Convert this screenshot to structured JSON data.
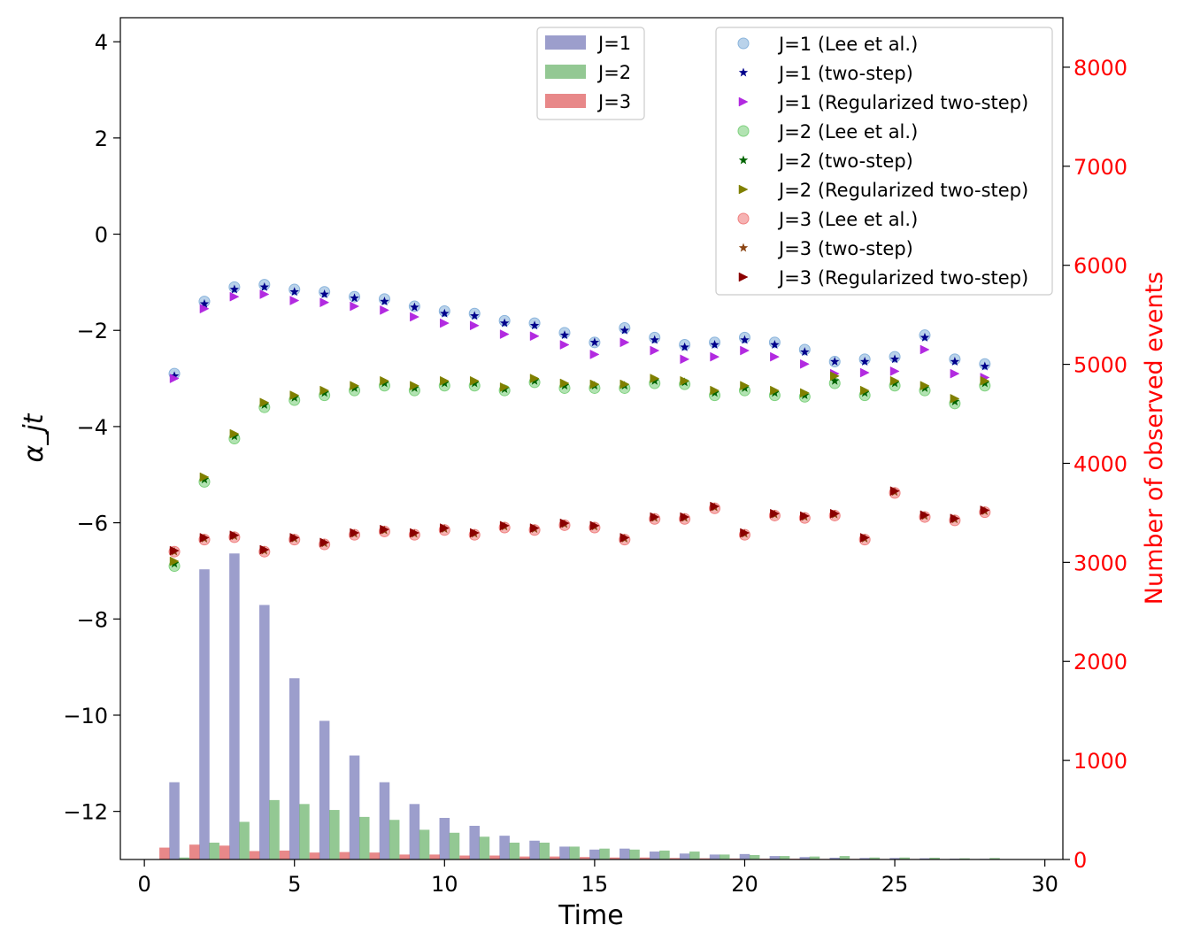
{
  "chart_data": {
    "type": "bar+scatter",
    "xlabel": "Time",
    "ylabel_left": "α_jt",
    "ylabel_right": "Number of observed events",
    "xlim": [
      -0.8,
      30.6
    ],
    "ylim_left": [
      -13.0,
      4.5
    ],
    "ylim_right": [
      0,
      8500
    ],
    "x_ticks": [
      0,
      5,
      10,
      15,
      20,
      25,
      30
    ],
    "x_tick_labels": [
      "0",
      "5",
      "10",
      "15",
      "20",
      "25",
      "30"
    ],
    "y_left_ticks": [
      4,
      2,
      0,
      -2,
      -4,
      -6,
      -8,
      -10,
      -12
    ],
    "y_left_tick_labels": [
      "4",
      "2",
      "0",
      "−2",
      "−4",
      "−6",
      "−8",
      "−10",
      "−12"
    ],
    "y_right_ticks": [
      0,
      1000,
      2000,
      3000,
      4000,
      5000,
      6000,
      7000,
      8000
    ],
    "y_right_tick_labels": [
      "0",
      "1000",
      "2000",
      "3000",
      "4000",
      "5000",
      "6000",
      "7000",
      "8000"
    ],
    "colors": {
      "axis_right": "#ff0000",
      "bar_j1": "#4a4fa3",
      "bar_j2": "#3a9a3a",
      "bar_j3": "#d62728"
    },
    "bar_series": [
      {
        "name": "J=1",
        "color": "#4a4fa3",
        "offset": 0.0,
        "values": [
          780,
          2930,
          3090,
          2570,
          1830,
          1400,
          1050,
          780,
          560,
          420,
          340,
          240,
          190,
          130,
          100,
          110,
          80,
          60,
          50,
          55,
          35,
          25,
          18,
          15,
          15,
          12,
          8,
          6
        ]
      },
      {
        "name": "J=2",
        "color": "#3a9a3a",
        "offset": 0.33,
        "values": [
          20,
          170,
          380,
          600,
          560,
          500,
          430,
          400,
          300,
          270,
          230,
          170,
          170,
          130,
          110,
          100,
          90,
          80,
          50,
          45,
          35,
          30,
          35,
          20,
          20,
          18,
          12,
          15
        ]
      },
      {
        "name": "J=3",
        "color": "#d62728",
        "offset": -0.33,
        "values": [
          120,
          150,
          140,
          85,
          90,
          70,
          75,
          70,
          50,
          50,
          40,
          40,
          30,
          30,
          25,
          20,
          20,
          15,
          12,
          10,
          8,
          8,
          6,
          6,
          5,
          5,
          4,
          3
        ]
      }
    ],
    "scatter_series": [
      {
        "name": "J=1 (Lee et al.)",
        "marker": "circle",
        "color": "#8ab4dc",
        "x": [
          1,
          2,
          3,
          4,
          5,
          6,
          7,
          8,
          9,
          10,
          11,
          12,
          13,
          14,
          15,
          16,
          17,
          18,
          19,
          20,
          21,
          22,
          23,
          24,
          25,
          26,
          27,
          28
        ],
        "y": [
          -2.9,
          -1.4,
          -1.1,
          -1.05,
          -1.15,
          -1.2,
          -1.3,
          -1.35,
          -1.5,
          -1.6,
          -1.65,
          -1.8,
          -1.85,
          -2.05,
          -2.25,
          -1.95,
          -2.15,
          -2.3,
          -2.25,
          -2.15,
          -2.25,
          -2.4,
          -2.65,
          -2.6,
          -2.55,
          -2.1,
          -2.6,
          -2.7
        ]
      },
      {
        "name": "J=1 (two-step)",
        "marker": "star",
        "color": "#00008b",
        "x": [
          1,
          2,
          3,
          4,
          5,
          6,
          7,
          8,
          9,
          10,
          11,
          12,
          13,
          14,
          15,
          16,
          17,
          18,
          19,
          20,
          21,
          22,
          23,
          24,
          25,
          26,
          27,
          28
        ],
        "y": [
          -2.95,
          -1.45,
          -1.15,
          -1.1,
          -1.2,
          -1.25,
          -1.33,
          -1.4,
          -1.52,
          -1.65,
          -1.7,
          -1.85,
          -1.9,
          -2.1,
          -2.25,
          -2.0,
          -2.2,
          -2.35,
          -2.3,
          -2.2,
          -2.3,
          -2.45,
          -2.65,
          -2.65,
          -2.6,
          -2.15,
          -2.65,
          -2.75
        ]
      },
      {
        "name": "J=1 (Regularized two-step)",
        "marker": "triangle-right",
        "color": "#b22ae0",
        "x": [
          1,
          2,
          3,
          4,
          5,
          6,
          7,
          8,
          9,
          10,
          11,
          12,
          13,
          14,
          15,
          16,
          17,
          18,
          19,
          20,
          21,
          22,
          23,
          24,
          25,
          26,
          27,
          28
        ],
        "y": [
          -3.0,
          -1.55,
          -1.3,
          -1.25,
          -1.38,
          -1.42,
          -1.5,
          -1.58,
          -1.72,
          -1.85,
          -1.9,
          -2.08,
          -2.12,
          -2.3,
          -2.5,
          -2.25,
          -2.42,
          -2.6,
          -2.55,
          -2.42,
          -2.55,
          -2.7,
          -2.9,
          -2.88,
          -2.85,
          -2.4,
          -2.9,
          -2.98
        ]
      },
      {
        "name": "J=2 (Lee et al.)",
        "marker": "circle",
        "color": "#7fd17f",
        "x": [
          1,
          2,
          3,
          4,
          5,
          6,
          7,
          8,
          9,
          10,
          11,
          12,
          13,
          14,
          15,
          16,
          17,
          18,
          19,
          20,
          21,
          22,
          23,
          24,
          25,
          26,
          27,
          28
        ],
        "y": [
          -6.9,
          -5.15,
          -4.25,
          -3.6,
          -3.45,
          -3.35,
          -3.25,
          -3.15,
          -3.25,
          -3.15,
          -3.15,
          -3.25,
          -3.08,
          -3.2,
          -3.2,
          -3.2,
          -3.1,
          -3.12,
          -3.35,
          -3.25,
          -3.35,
          -3.38,
          -3.1,
          -3.35,
          -3.15,
          -3.25,
          -3.52,
          -3.15
        ]
      },
      {
        "name": "J=2 (two-step)",
        "marker": "star",
        "color": "#006400",
        "x": [
          1,
          2,
          3,
          4,
          5,
          6,
          7,
          8,
          9,
          10,
          11,
          12,
          13,
          14,
          15,
          16,
          17,
          18,
          19,
          20,
          21,
          22,
          23,
          24,
          25,
          26,
          27,
          28
        ],
        "y": [
          -6.85,
          -5.1,
          -4.2,
          -3.55,
          -3.4,
          -3.3,
          -3.2,
          -3.1,
          -3.2,
          -3.1,
          -3.1,
          -3.22,
          -3.05,
          -3.15,
          -3.15,
          -3.15,
          -3.05,
          -3.08,
          -3.3,
          -3.2,
          -3.3,
          -3.35,
          -3.05,
          -3.3,
          -3.1,
          -3.2,
          -3.48,
          -3.1
        ]
      },
      {
        "name": "J=2 (Regularized two-step)",
        "marker": "triangle-right",
        "color": "#808000",
        "x": [
          1,
          2,
          3,
          4,
          5,
          6,
          7,
          8,
          9,
          10,
          11,
          12,
          13,
          14,
          15,
          16,
          17,
          18,
          19,
          20,
          21,
          22,
          23,
          24,
          25,
          26,
          27,
          28
        ],
        "y": [
          -6.8,
          -5.05,
          -4.15,
          -3.5,
          -3.35,
          -3.25,
          -3.15,
          -3.05,
          -3.15,
          -3.05,
          -3.05,
          -3.18,
          -3.0,
          -3.1,
          -3.12,
          -3.12,
          -3.0,
          -3.05,
          -3.25,
          -3.15,
          -3.25,
          -3.3,
          -2.95,
          -3.25,
          -3.05,
          -3.15,
          -3.42,
          -3.05
        ]
      },
      {
        "name": "J=3 (Lee et al.)",
        "marker": "circle",
        "color": "#f08080",
        "x": [
          1,
          2,
          3,
          4,
          5,
          6,
          7,
          8,
          9,
          10,
          11,
          12,
          13,
          14,
          15,
          16,
          17,
          18,
          19,
          20,
          21,
          22,
          23,
          24,
          25,
          26,
          27,
          28
        ],
        "y": [
          -6.6,
          -6.35,
          -6.3,
          -6.6,
          -6.35,
          -6.45,
          -6.25,
          -6.18,
          -6.25,
          -6.15,
          -6.25,
          -6.1,
          -6.15,
          -6.05,
          -6.1,
          -6.35,
          -5.92,
          -5.92,
          -5.7,
          -6.25,
          -5.85,
          -5.9,
          -5.85,
          -6.35,
          -5.38,
          -5.88,
          -5.95,
          -5.78
        ]
      },
      {
        "name": "J=3 (two-step)",
        "marker": "star",
        "color": "#8b4513",
        "x": [
          1,
          2,
          3,
          4,
          5,
          6,
          7,
          8,
          9,
          10,
          11,
          12,
          13,
          14,
          15,
          16,
          17,
          18,
          19,
          20,
          21,
          22,
          23,
          24,
          25,
          26,
          27,
          28
        ],
        "y": [
          -6.6,
          -6.33,
          -6.28,
          -6.58,
          -6.33,
          -6.43,
          -6.23,
          -6.16,
          -6.23,
          -6.13,
          -6.23,
          -6.08,
          -6.13,
          -6.03,
          -6.08,
          -6.33,
          -5.9,
          -5.9,
          -5.68,
          -6.23,
          -5.83,
          -5.88,
          -5.83,
          -6.33,
          -5.36,
          -5.86,
          -5.93,
          -5.76
        ]
      },
      {
        "name": "J=3 (Regularized two-step)",
        "marker": "triangle-right",
        "color": "#8b0000",
        "x": [
          1,
          2,
          3,
          4,
          5,
          6,
          7,
          8,
          9,
          10,
          11,
          12,
          13,
          14,
          15,
          16,
          17,
          18,
          19,
          20,
          21,
          22,
          23,
          24,
          25,
          26,
          27,
          28
        ],
        "y": [
          -6.58,
          -6.31,
          -6.26,
          -6.56,
          -6.31,
          -6.41,
          -6.21,
          -6.14,
          -6.21,
          -6.11,
          -6.21,
          -6.06,
          -6.11,
          -6.01,
          -6.06,
          -6.31,
          -5.88,
          -5.88,
          -5.66,
          -6.21,
          -5.81,
          -5.86,
          -5.81,
          -6.31,
          -5.34,
          -5.84,
          -5.91,
          -5.74
        ]
      }
    ]
  }
}
